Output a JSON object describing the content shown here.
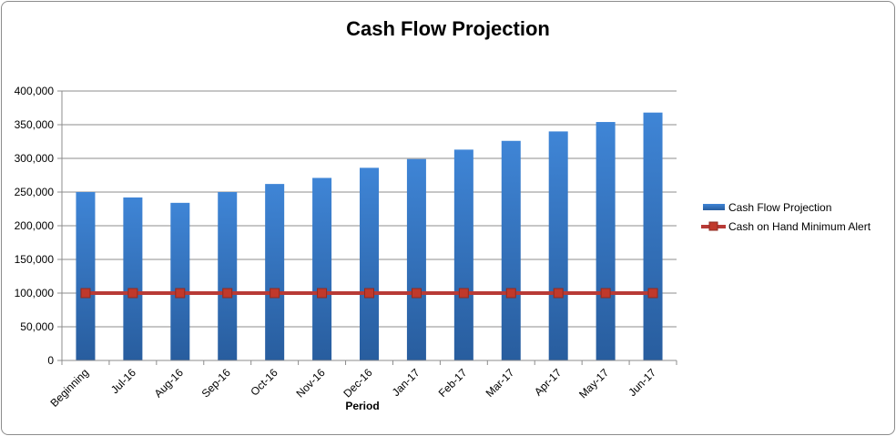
{
  "chart_data": {
    "type": "bar",
    "title": "Cash Flow Projection",
    "xlabel": "Period",
    "ylabel": "",
    "ylim": [
      0,
      400000
    ],
    "yticks": [
      "0",
      "50,000",
      "100,000",
      "150,000",
      "200,000",
      "250,000",
      "300,000",
      "350,000",
      "400,000"
    ],
    "ytick_values": [
      0,
      50000,
      100000,
      150000,
      200000,
      250000,
      300000,
      350000,
      400000
    ],
    "categories": [
      "Beginning",
      "Jul-16",
      "Aug-16",
      "Sep-16",
      "Oct-16",
      "Nov-16",
      "Dec-16",
      "Jan-17",
      "Feb-17",
      "Mar-17",
      "Apr-17",
      "May-17",
      "Jun-17"
    ],
    "series": [
      {
        "name": "Cash Flow Projection",
        "kind": "bar",
        "color": "#3a78c8",
        "values": [
          250000,
          242000,
          234000,
          250000,
          262000,
          271000,
          286000,
          299000,
          313000,
          326000,
          340000,
          354000,
          368000
        ]
      },
      {
        "name": "Cash on Hand Minimum Alert",
        "kind": "line",
        "color": "#b83a36",
        "values": [
          100000,
          100000,
          100000,
          100000,
          100000,
          100000,
          100000,
          100000,
          100000,
          100000,
          100000,
          100000,
          100000
        ]
      }
    ],
    "grid": true,
    "legend": "right"
  }
}
